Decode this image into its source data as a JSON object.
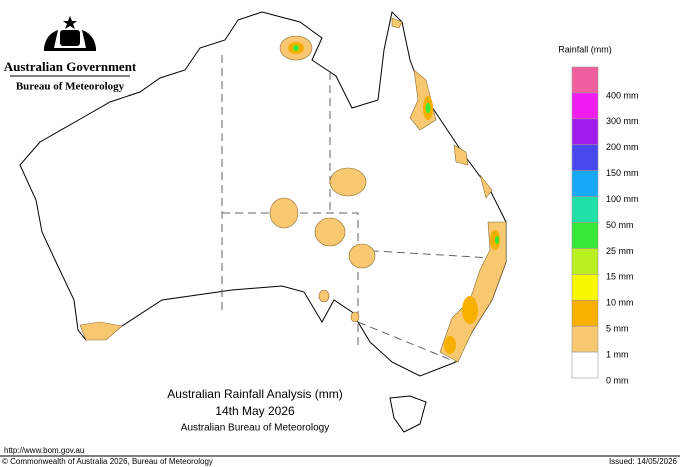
{
  "header": {
    "government": "Australian Government",
    "agency": "Bureau of Meteorology"
  },
  "map": {
    "title": "Australian Rainfall Analysis (mm)",
    "date": "14th May 2026",
    "source": "Australian Bureau of Meteorology",
    "url": "http://www.bom.gov.au"
  },
  "legend": {
    "title": "Rainfall (mm)",
    "items": [
      {
        "label": "400 mm",
        "color": "#f0609f"
      },
      {
        "label": "300 mm",
        "color": "#f01cf0"
      },
      {
        "label": "200 mm",
        "color": "#a21cf0"
      },
      {
        "label": "150 mm",
        "color": "#4848f0"
      },
      {
        "label": "100 mm",
        "color": "#18a8f8"
      },
      {
        "label": "50 mm",
        "color": "#20e0a8"
      },
      {
        "label": "25 mm",
        "color": "#38e838"
      },
      {
        "label": "15 mm",
        "color": "#b8f020"
      },
      {
        "label": "10 mm",
        "color": "#f8f800"
      },
      {
        "label": "5 mm",
        "color": "#f8b000"
      },
      {
        "label": "1 mm",
        "color": "#f8c870"
      },
      {
        "label": "0 mm",
        "color": "#ffffff"
      }
    ]
  },
  "footer": {
    "copyright": "© Commonwealth of Australia 2026, Bureau of Meteorology",
    "issued": "Issued: 14/05/2026"
  }
}
